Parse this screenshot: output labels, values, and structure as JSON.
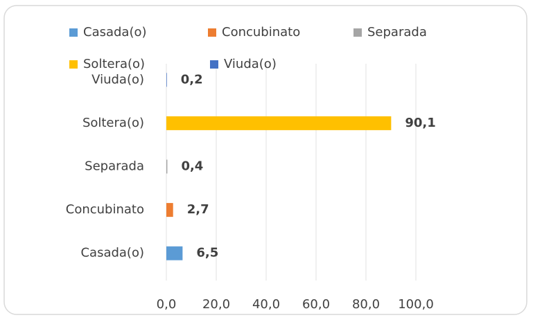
{
  "chart_data": {
    "type": "bar",
    "orientation": "horizontal",
    "categories": [
      "Casada(o)",
      "Concubinato",
      "Separada",
      "Soltera(o)",
      "Viuda(o)"
    ],
    "values": [
      6.5,
      2.7,
      0.4,
      90.1,
      0.2
    ],
    "value_labels": [
      "6,5",
      "2,7",
      "0,4",
      "90,1",
      "0,2"
    ],
    "colors": [
      "#5b9bd5",
      "#ed7d31",
      "#a5a5a5",
      "#ffc000",
      "#4472c4"
    ],
    "xlim": [
      0,
      100
    ],
    "xticks": [
      {
        "value": 0,
        "label": "0,0"
      },
      {
        "value": 20,
        "label": "20,0"
      },
      {
        "value": 40,
        "label": "40,0"
      },
      {
        "value": 60,
        "label": "60,0"
      },
      {
        "value": 80,
        "label": "80,0"
      },
      {
        "value": 100,
        "label": "100,0"
      }
    ],
    "grid": true,
    "legend": "top"
  }
}
